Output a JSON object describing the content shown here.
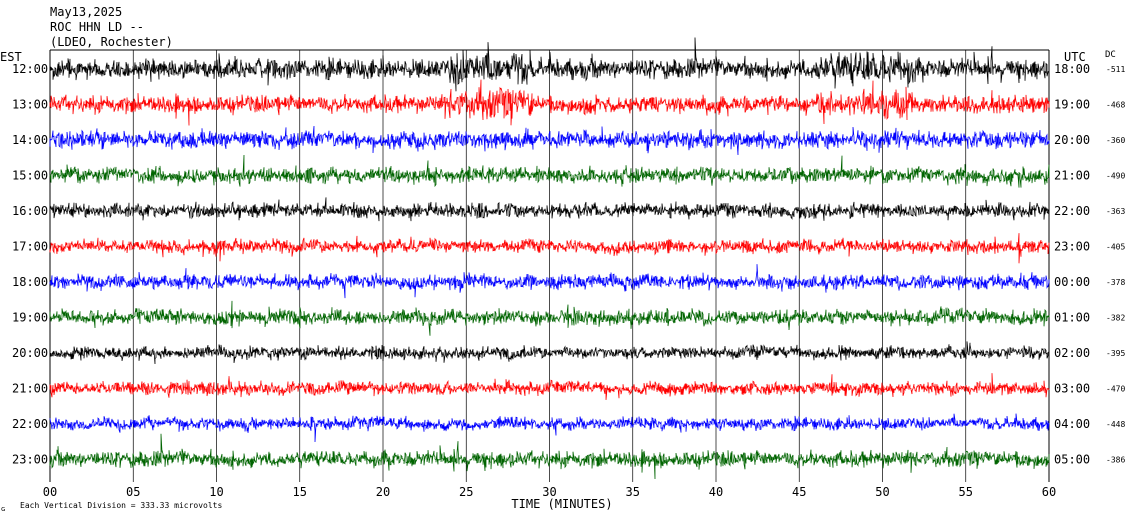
{
  "header": {
    "date": "May13,2025",
    "station": "ROC HHN LD --",
    "location": "(LDEO, Rochester)"
  },
  "left_axis_label": "EST",
  "right_axis_label": "UTC",
  "dc_label": "DC",
  "footer_note": "Each Vertical Division =  333.33 microvolts",
  "footer_mark": "ɢ",
  "chart_data": {
    "type": "line",
    "xlabel": "TIME (MINUTES)",
    "xlim": [
      0,
      60
    ],
    "x_ticks": [
      {
        "value": 0,
        "label": "00"
      },
      {
        "value": 5,
        "label": "05"
      },
      {
        "value": 10,
        "label": "10"
      },
      {
        "value": 15,
        "label": "15"
      },
      {
        "value": 20,
        "label": "20"
      },
      {
        "value": 25,
        "label": "25"
      },
      {
        "value": 30,
        "label": "30"
      },
      {
        "value": 35,
        "label": "35"
      },
      {
        "value": 40,
        "label": "40"
      },
      {
        "value": 45,
        "label": "45"
      },
      {
        "value": 50,
        "label": "50"
      },
      {
        "value": 55,
        "label": "55"
      },
      {
        "value": 60,
        "label": "60"
      }
    ],
    "series_colors": [
      "#000000",
      "#ff0000",
      "#0000ff",
      "#006400"
    ],
    "traces": [
      {
        "est": "12:00",
        "utc": "18:00",
        "dc": "-511",
        "color": "#000000",
        "amplitude": 16
      },
      {
        "est": "13:00",
        "utc": "19:00",
        "dc": "-468",
        "color": "#ff0000",
        "amplitude": 14
      },
      {
        "est": "14:00",
        "utc": "20:00",
        "dc": "-360",
        "color": "#0000ff",
        "amplitude": 15
      },
      {
        "est": "15:00",
        "utc": "21:00",
        "dc": "-490",
        "color": "#006400",
        "amplitude": 13
      },
      {
        "est": "16:00",
        "utc": "22:00",
        "dc": "-363",
        "color": "#000000",
        "amplitude": 12
      },
      {
        "est": "17:00",
        "utc": "23:00",
        "dc": "-405",
        "color": "#ff0000",
        "amplitude": 11
      },
      {
        "est": "18:00",
        "utc": "00:00",
        "dc": "-378",
        "color": "#0000ff",
        "amplitude": 12
      },
      {
        "est": "19:00",
        "utc": "01:00",
        "dc": "-382",
        "color": "#006400",
        "amplitude": 12
      },
      {
        "est": "20:00",
        "utc": "02:00",
        "dc": "-395",
        "color": "#000000",
        "amplitude": 10
      },
      {
        "est": "21:00",
        "utc": "03:00",
        "dc": "-470",
        "color": "#ff0000",
        "amplitude": 11
      },
      {
        "est": "22:00",
        "utc": "04:00",
        "dc": "-448",
        "color": "#0000ff",
        "amplitude": 10
      },
      {
        "est": "23:00",
        "utc": "05:00",
        "dc": "-386",
        "color": "#006400",
        "amplitude": 13
      }
    ]
  }
}
